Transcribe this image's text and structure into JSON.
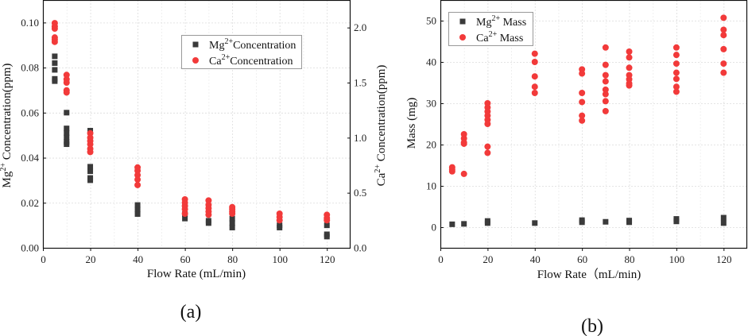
{
  "chart_data": [
    {
      "type": "scatter",
      "caption": "(a)",
      "xlabel": "Flow Rate (mL/min)",
      "ylabel": "Mg2+ Concentration(ppm)",
      "ylabel_base": "Mg",
      "ylabel_sup": "2+",
      "ylabel_rest": " Concentration(ppm)",
      "y2label_base": "Ca",
      "y2label_sup": "2+",
      "y2label_rest": " Concentration(ppm)",
      "xlim": [
        0,
        130
      ],
      "ylim": [
        0,
        0.11
      ],
      "y2lim": [
        0,
        2.25
      ],
      "xticks": [
        0,
        20,
        40,
        60,
        80,
        100,
        120
      ],
      "xtick_labels": [
        "0",
        "20",
        "40",
        "60",
        "80",
        "100",
        "120"
      ],
      "yticks": [
        0,
        0.02,
        0.04,
        0.06,
        0.08,
        0.1
      ],
      "ytick_labels": [
        "0.00",
        "0.02",
        "0.04",
        "0.06",
        "0.08",
        "0.10"
      ],
      "y2ticks": [
        0,
        0.5,
        1.0,
        1.5,
        2.0
      ],
      "y2tick_labels": [
        "0.0",
        "0.5",
        "1.0",
        "1.5",
        "2.0"
      ],
      "grid": true,
      "legend_position": "top-right",
      "series": [
        {
          "name": "Mg2+Concentration",
          "legend_base": "Mg",
          "legend_sup": "2+",
          "legend_rest": "Concentration",
          "axis": "left",
          "marker": "square",
          "color": "#3a3a3a",
          "points": [
            [
              5,
              0.085
            ],
            [
              5,
              0.082
            ],
            [
              5,
              0.079
            ],
            [
              5,
              0.075
            ],
            [
              5,
              0.074
            ],
            [
              10,
              0.06
            ],
            [
              10,
              0.053
            ],
            [
              10,
              0.051
            ],
            [
              10,
              0.049
            ],
            [
              10,
              0.047
            ],
            [
              10,
              0.046
            ],
            [
              20,
              0.052
            ],
            [
              20,
              0.036
            ],
            [
              20,
              0.034
            ],
            [
              20,
              0.031
            ],
            [
              20,
              0.03
            ],
            [
              40,
              0.019
            ],
            [
              40,
              0.017
            ],
            [
              40,
              0.015
            ],
            [
              60,
              0.019
            ],
            [
              60,
              0.015
            ],
            [
              60,
              0.013
            ],
            [
              70,
              0.012
            ],
            [
              70,
              0.011
            ],
            [
              80,
              0.013
            ],
            [
              80,
              0.011
            ],
            [
              80,
              0.009
            ],
            [
              100,
              0.01
            ],
            [
              100,
              0.009
            ],
            [
              120,
              0.01
            ],
            [
              120,
              0.006
            ],
            [
              120,
              0.005
            ]
          ]
        },
        {
          "name": "Ca2+Concentration",
          "legend_base": "Ca",
          "legend_sup": "2+",
          "legend_rest": "Concentration",
          "axis": "right",
          "marker": "circle",
          "color": "#f23a3a",
          "points": [
            [
              5,
              2.04
            ],
            [
              5,
              2.01
            ],
            [
              5,
              1.99
            ],
            [
              5,
              1.91
            ],
            [
              5,
              1.89
            ],
            [
              5,
              1.87
            ],
            [
              10,
              1.57
            ],
            [
              10,
              1.53
            ],
            [
              10,
              1.5
            ],
            [
              10,
              1.43
            ],
            [
              10,
              1.41
            ],
            [
              20,
              1.04
            ],
            [
              20,
              1.0
            ],
            [
              20,
              0.97
            ],
            [
              20,
              0.94
            ],
            [
              20,
              0.9
            ],
            [
              20,
              0.87
            ],
            [
              40,
              0.73
            ],
            [
              40,
              0.7
            ],
            [
              40,
              0.66
            ],
            [
              40,
              0.62
            ],
            [
              40,
              0.57
            ],
            [
              60,
              0.44
            ],
            [
              60,
              0.41
            ],
            [
              60,
              0.38
            ],
            [
              60,
              0.35
            ],
            [
              60,
              0.31
            ],
            [
              70,
              0.43
            ],
            [
              70,
              0.39
            ],
            [
              70,
              0.36
            ],
            [
              70,
              0.33
            ],
            [
              70,
              0.3
            ],
            [
              80,
              0.37
            ],
            [
              80,
              0.35
            ],
            [
              80,
              0.33
            ],
            [
              80,
              0.31
            ],
            [
              100,
              0.31
            ],
            [
              100,
              0.28
            ],
            [
              100,
              0.25
            ],
            [
              120,
              0.3
            ],
            [
              120,
              0.27
            ],
            [
              120,
              0.25
            ]
          ]
        }
      ]
    },
    {
      "type": "scatter",
      "caption": "(b)",
      "xlabel": "Flow Rate（mL/min)",
      "ylabel": "Mass (mg)",
      "xlim": [
        0,
        130
      ],
      "ylim": [
        -5,
        55
      ],
      "xticks": [
        0,
        20,
        40,
        60,
        80,
        100,
        120
      ],
      "xtick_labels": [
        "0",
        "20",
        "40",
        "60",
        "80",
        "100",
        "120"
      ],
      "yticks": [
        0,
        10,
        20,
        30,
        40,
        50
      ],
      "ytick_labels": [
        "0",
        "10",
        "20",
        "30",
        "40",
        "50"
      ],
      "grid": true,
      "legend_position": "top-left",
      "series": [
        {
          "name": "Mg2+ Mass",
          "legend_base": "Mg",
          "legend_sup": "2+",
          "legend_rest": " Mass",
          "axis": "left",
          "marker": "square",
          "color": "#3a3a3a",
          "points": [
            [
              5,
              0.7
            ],
            [
              10,
              0.8
            ],
            [
              20,
              1.0
            ],
            [
              20,
              1.5
            ],
            [
              40,
              1.0
            ],
            [
              60,
              1.2
            ],
            [
              60,
              1.7
            ],
            [
              70,
              1.3
            ],
            [
              80,
              1.2
            ],
            [
              80,
              1.6
            ],
            [
              100,
              1.4
            ],
            [
              100,
              2.0
            ],
            [
              120,
              1.0
            ],
            [
              120,
              2.3
            ]
          ]
        },
        {
          "name": "Ca2+ Mass",
          "legend_base": "Ca",
          "legend_sup": "2+",
          "legend_rest": " Mass",
          "axis": "left",
          "marker": "circle",
          "color": "#f23a3a",
          "points": [
            [
              5,
              14.5
            ],
            [
              5,
              14
            ],
            [
              5,
              13.5
            ],
            [
              10,
              22.5
            ],
            [
              10,
              21.5
            ],
            [
              10,
              20.5
            ],
            [
              10,
              20.2
            ],
            [
              10,
              12.9
            ],
            [
              20,
              30
            ],
            [
              20,
              29
            ],
            [
              20,
              28
            ],
            [
              20,
              27
            ],
            [
              20,
              26
            ],
            [
              20,
              25
            ],
            [
              20,
              19.5
            ],
            [
              20,
              18
            ],
            [
              40,
              42
            ],
            [
              40,
              40
            ],
            [
              40,
              36.5
            ],
            [
              40,
              34
            ],
            [
              40,
              32.5
            ],
            [
              60,
              38.2
            ],
            [
              60,
              37.2
            ],
            [
              60,
              32.5
            ],
            [
              60,
              30.3
            ],
            [
              60,
              27
            ],
            [
              60,
              25.8
            ],
            [
              70,
              43.5
            ],
            [
              70,
              39.3
            ],
            [
              70,
              36.8
            ],
            [
              70,
              35.3
            ],
            [
              70,
              33.3
            ],
            [
              70,
              32.2
            ],
            [
              70,
              30.5
            ],
            [
              70,
              28.1
            ],
            [
              80,
              42.5
            ],
            [
              80,
              41.1
            ],
            [
              80,
              38.6
            ],
            [
              80,
              36.8
            ],
            [
              80,
              35.8
            ],
            [
              80,
              34.8
            ],
            [
              80,
              34.3
            ],
            [
              100,
              43.5
            ],
            [
              100,
              41.7
            ],
            [
              100,
              39.6
            ],
            [
              100,
              37.4
            ],
            [
              100,
              35.9
            ],
            [
              100,
              34
            ],
            [
              100,
              32.8
            ],
            [
              120,
              50.7
            ],
            [
              120,
              47.8
            ],
            [
              120,
              46.5
            ],
            [
              120,
              43.1
            ],
            [
              120,
              39.6
            ],
            [
              120,
              37.4
            ]
          ]
        }
      ]
    }
  ]
}
